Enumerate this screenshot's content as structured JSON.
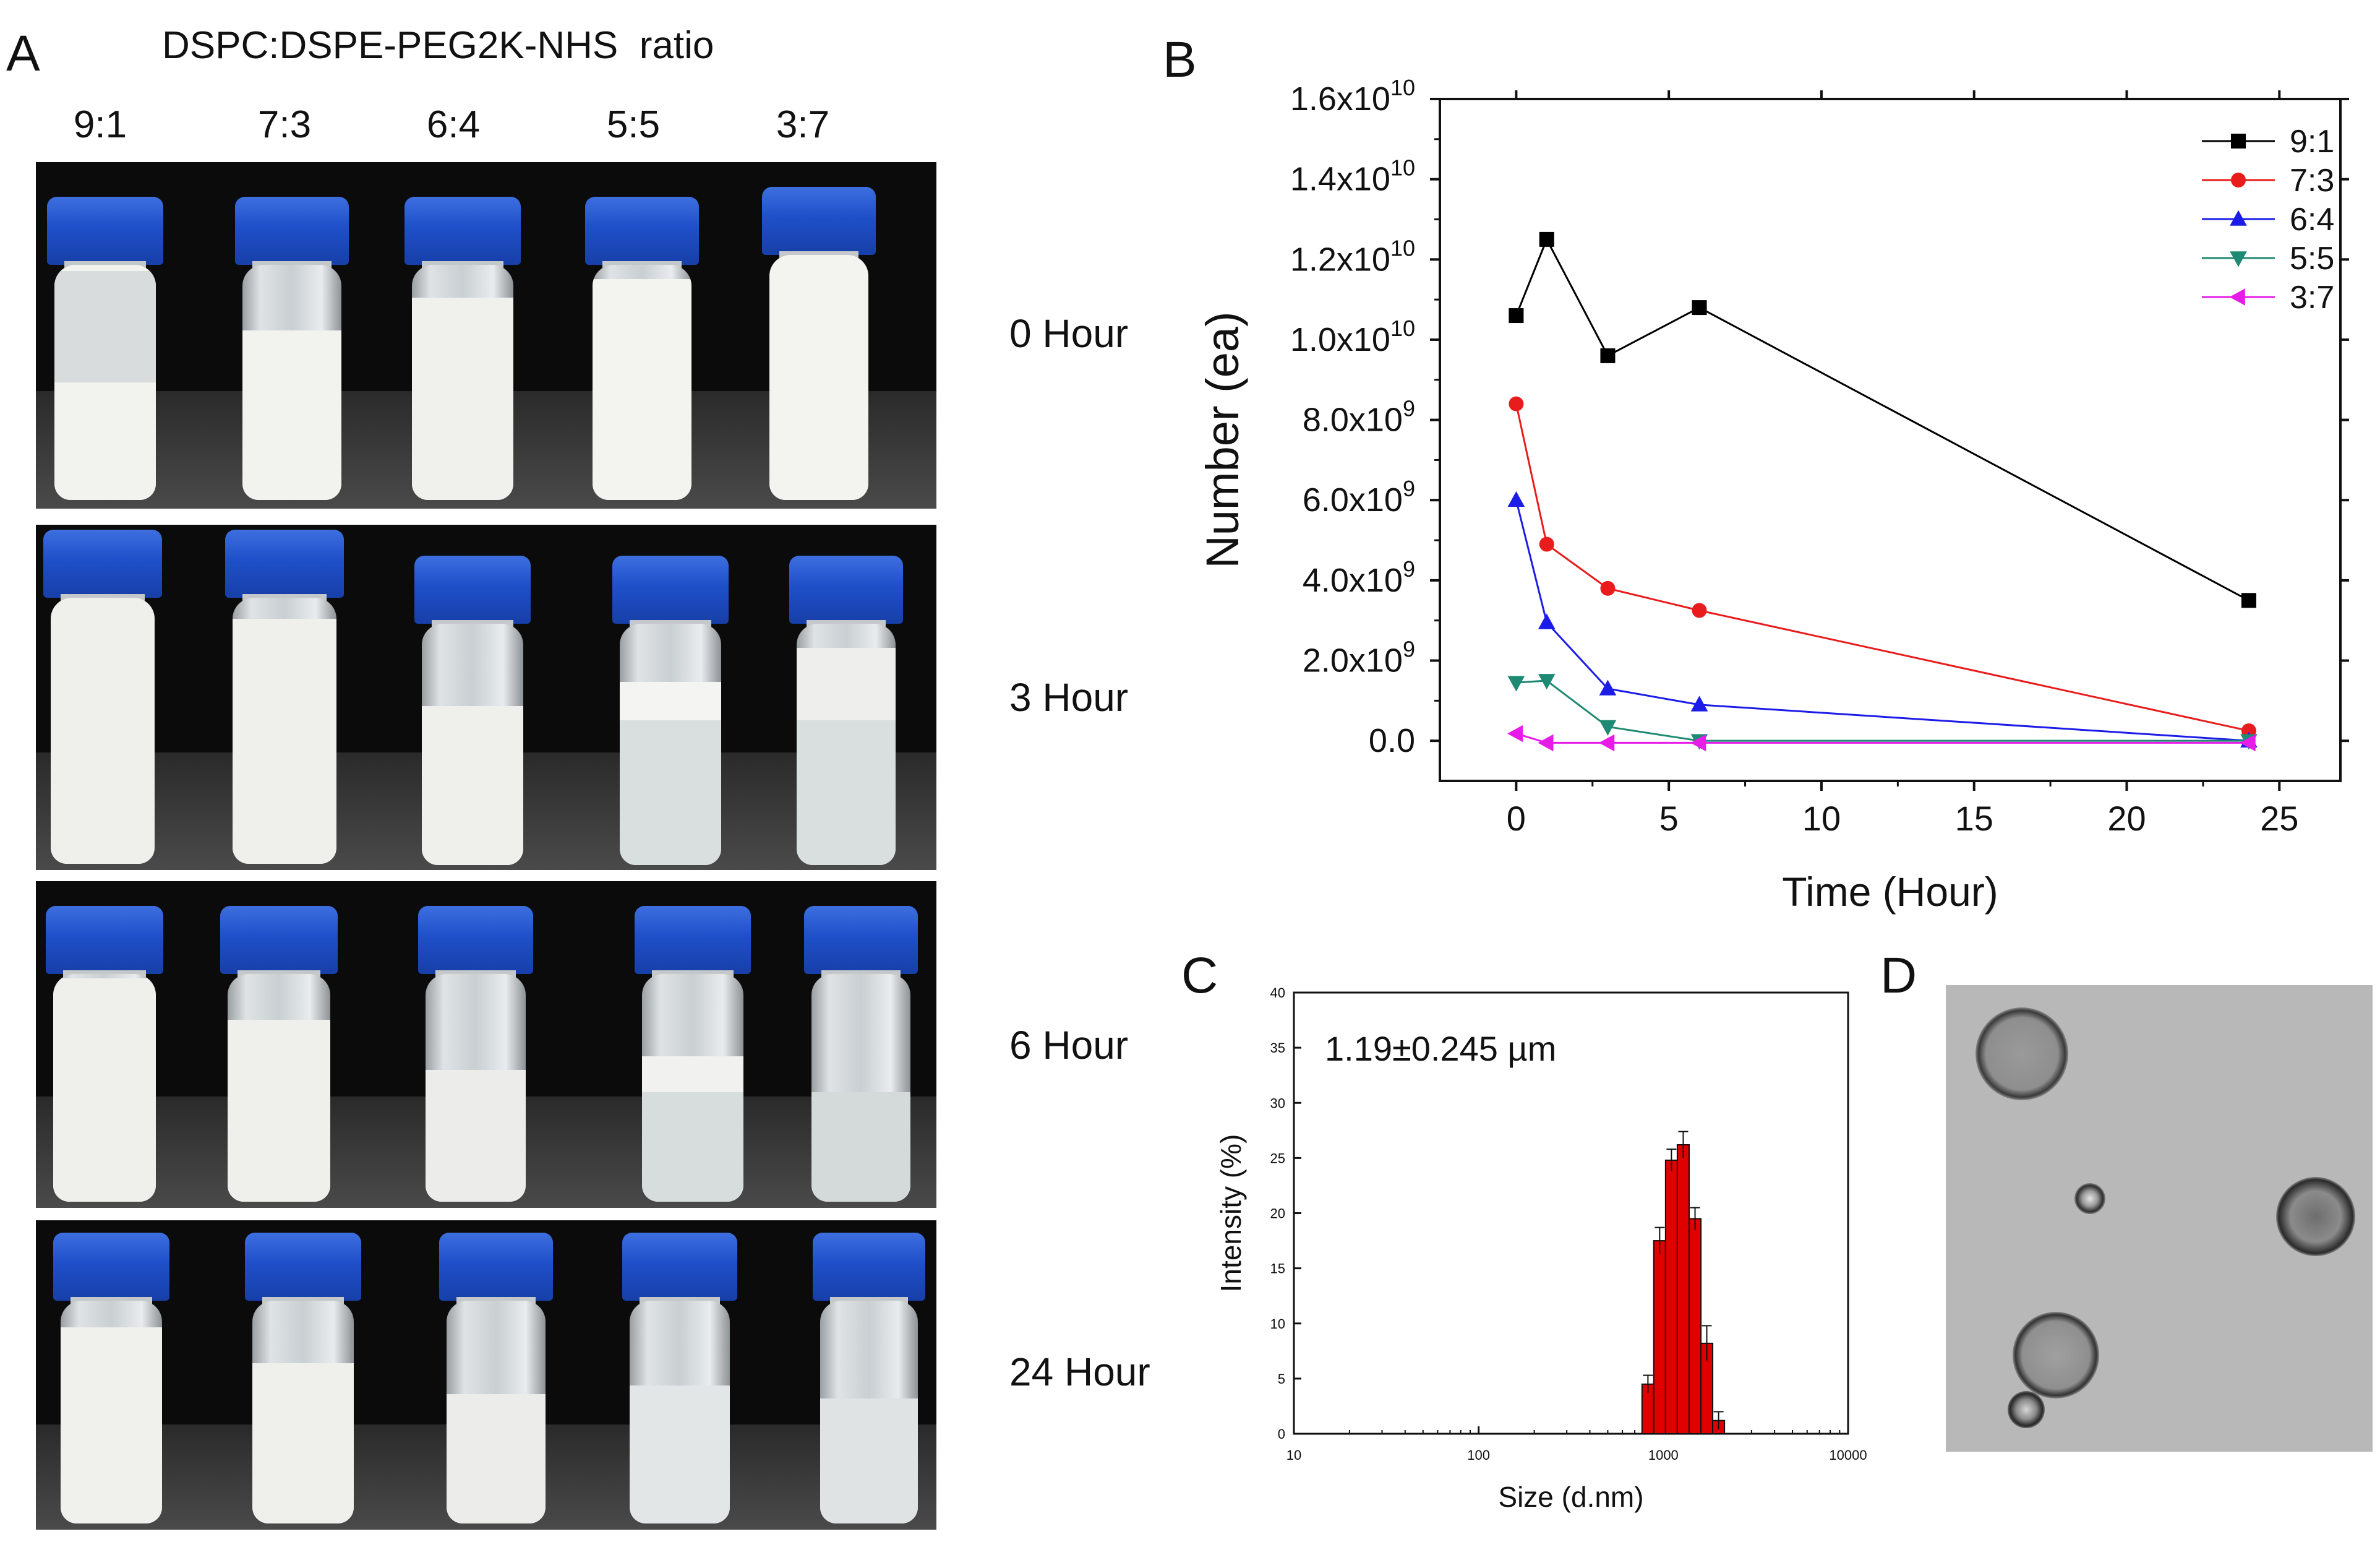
{
  "panels": {
    "a": {
      "letter": "A",
      "title": "DSPC:DSPE-PEG2K-NHS  ratio",
      "ratios": [
        "9:1",
        "7:3",
        "6:4",
        "5:5",
        "3:7"
      ],
      "times": [
        "0 Hour",
        "3 Hour",
        "6 Hour",
        "24 Hour"
      ]
    },
    "b": {
      "letter": "B"
    },
    "c": {
      "letter": "C",
      "annotation": "1.19±0.245 µm"
    },
    "d": {
      "letter": "D"
    }
  },
  "colors": {
    "s91": "#000000",
    "s73": "#e81c1c",
    "s64": "#1c1ce8",
    "s55": "#1f8a73",
    "s37": "#e81ce8",
    "bar": "#e00000"
  },
  "chart_data": [
    {
      "type": "line",
      "panel": "B",
      "xlabel": "Time (Hour)",
      "ylabel": "Number (ea)",
      "xlim": [
        -2.5,
        27
      ],
      "ylim": [
        -1000000000.0,
        16000000000.0
      ],
      "xticks": [
        0,
        5,
        10,
        15,
        20,
        25
      ],
      "xtick_labels": [
        "0",
        "5",
        "10",
        "15",
        "20",
        "25"
      ],
      "yticks": [
        0,
        2000000000.0,
        4000000000.0,
        6000000000.0,
        8000000000.0,
        10000000000.0,
        12000000000.0,
        14000000000.0,
        16000000000.0
      ],
      "ytick_labels": [
        {
          "mant": "0.0",
          "exp": ""
        },
        {
          "mant": "2.0x10",
          "exp": "9"
        },
        {
          "mant": "4.0x10",
          "exp": "9"
        },
        {
          "mant": "6.0x10",
          "exp": "9"
        },
        {
          "mant": "8.0x10",
          "exp": "9"
        },
        {
          "mant": "1.0x10",
          "exp": "10"
        },
        {
          "mant": "1.2x10",
          "exp": "10"
        },
        {
          "mant": "1.4x10",
          "exp": "10"
        },
        {
          "mant": "1.6x10",
          "exp": "10"
        }
      ],
      "series": [
        {
          "name": "9:1",
          "marker": "square",
          "colorKey": "s91",
          "x": [
            0,
            1,
            3,
            6,
            24
          ],
          "y": [
            10600000000.0,
            12500000000.0,
            9600000000.0,
            10800000000.0,
            3500000000.0
          ]
        },
        {
          "name": "7:3",
          "marker": "circle",
          "colorKey": "s73",
          "x": [
            0,
            1,
            3,
            6,
            24
          ],
          "y": [
            8400000000.0,
            4900000000.0,
            3800000000.0,
            3250000000.0,
            250000000.0
          ]
        },
        {
          "name": "6:4",
          "marker": "triangle",
          "colorKey": "s64",
          "x": [
            0,
            1,
            3,
            6,
            24
          ],
          "y": [
            6000000000.0,
            2950000000.0,
            1300000000.0,
            900000000.0,
            0
          ]
        },
        {
          "name": "5:5",
          "marker": "tri-down",
          "colorKey": "s55",
          "x": [
            0,
            1,
            3,
            6,
            24
          ],
          "y": [
            1450000000.0,
            1500000000.0,
            350000000.0,
            0,
            0
          ]
        },
        {
          "name": "3:7",
          "marker": "tri-left",
          "colorKey": "s37",
          "x": [
            0,
            1,
            3,
            6,
            24
          ],
          "y": [
            180000000.0,
            -50000000.0,
            -50000000.0,
            -50000000.0,
            -50000000.0
          ]
        }
      ],
      "legend": "top-right"
    },
    {
      "type": "bar",
      "panel": "C",
      "xlabel": "Size (d.nm)",
      "ylabel": "Intensity (%)",
      "xscale": "log",
      "xlim": [
        10,
        10000
      ],
      "ylim": [
        0,
        40
      ],
      "xticks": [
        10,
        100,
        1000,
        10000
      ],
      "xtick_labels": [
        "10",
        "100",
        "1000",
        "10000"
      ],
      "yticks": [
        0,
        5,
        10,
        15,
        20,
        25,
        30,
        35,
        40
      ],
      "ytick_labels": [
        "0",
        "5",
        "10",
        "15",
        "20",
        "25",
        "30",
        "35",
        "40"
      ],
      "categories": [
        825,
        955,
        1106,
        1281,
        1484,
        1718,
        1990
      ],
      "values": [
        4.5,
        17.5,
        24.8,
        26.2,
        19.5,
        8.2,
        1.2
      ],
      "errors": [
        0.8,
        1.2,
        1.0,
        1.2,
        1.0,
        1.6,
        0.8
      ]
    }
  ]
}
